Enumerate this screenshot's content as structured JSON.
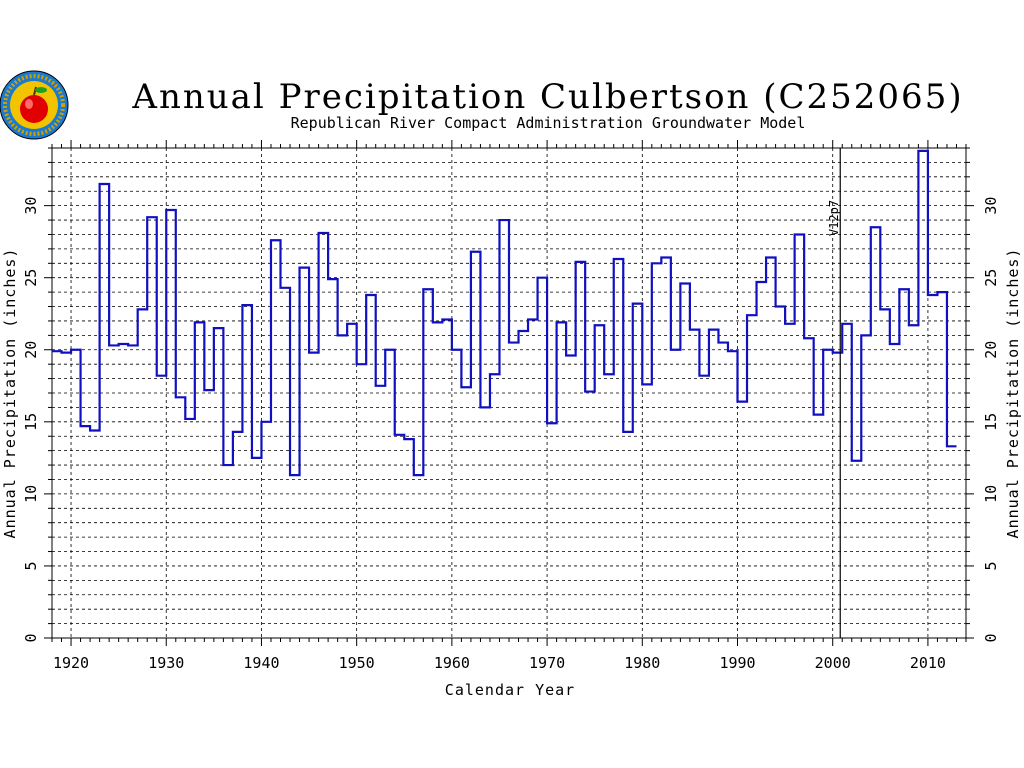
{
  "chart_data": {
    "type": "line",
    "style": "step",
    "title": "Annual Precipitation Culbertson (C252065)",
    "subtitle": "Republican River Compact Administration Groundwater Model",
    "xlabel": "Calendar Year",
    "ylabel": "Annual Precipitation (inches)",
    "xlim": [
      1918,
      2014
    ],
    "ylim": [
      0,
      34
    ],
    "x_ticks": [
      1920,
      1930,
      1940,
      1950,
      1960,
      1970,
      1980,
      1990,
      2000,
      2010
    ],
    "y_ticks": [
      0,
      5,
      10,
      15,
      20,
      25,
      30
    ],
    "grid": true,
    "series_color": "#1010c0",
    "annotation": {
      "text": "V12p7",
      "x": 2001
    },
    "series": [
      {
        "x": [
          1918,
          1919,
          1920,
          1921,
          1922,
          1923,
          1924,
          1925,
          1926,
          1927,
          1928,
          1929,
          1930,
          1931,
          1932,
          1933,
          1934,
          1935,
          1936,
          1937,
          1938,
          1939,
          1940,
          1941,
          1942,
          1943,
          1944,
          1945,
          1946,
          1947,
          1948,
          1949,
          1950,
          1951,
          1952,
          1953,
          1954,
          1955,
          1956,
          1957,
          1958,
          1959,
          1960,
          1961,
          1962,
          1963,
          1964,
          1965,
          1966,
          1967,
          1968,
          1969,
          1970,
          1971,
          1972,
          1973,
          1974,
          1975,
          1976,
          1977,
          1978,
          1979,
          1980,
          1981,
          1982,
          1983,
          1984,
          1985,
          1986,
          1987,
          1988,
          1989,
          1990,
          1991,
          1992,
          1993,
          1994,
          1995,
          1996,
          1997,
          1998,
          1999,
          2000,
          2001,
          2002,
          2003,
          2004,
          2005,
          2006,
          2007,
          2008,
          2009,
          2010,
          2011,
          2012
        ],
        "values": [
          19.9,
          19.8,
          20.0,
          14.7,
          14.4,
          31.5,
          20.3,
          20.4,
          20.3,
          22.8,
          29.2,
          18.2,
          29.7,
          16.7,
          15.2,
          21.9,
          17.2,
          21.5,
          12.0,
          14.3,
          23.1,
          12.5,
          15.0,
          27.6,
          24.3,
          11.3,
          25.7,
          19.8,
          28.1,
          24.9,
          21.0,
          21.8,
          19.0,
          23.8,
          17.5,
          20.0,
          14.1,
          13.8,
          11.3,
          24.2,
          21.9,
          22.1,
          20.0,
          17.4,
          26.8,
          16.0,
          18.3,
          29.0,
          20.5,
          21.3,
          22.1,
          25.0,
          14.9,
          21.9,
          19.6,
          26.1,
          17.1,
          21.7,
          18.3,
          26.3,
          14.3,
          23.2,
          17.6,
          26.0,
          26.4,
          20.0,
          24.6,
          21.4,
          18.2,
          21.4,
          20.5,
          19.9,
          16.4,
          22.4,
          24.7,
          26.4,
          23.0,
          21.8,
          28.0,
          20.8,
          15.5,
          20.0,
          19.8,
          21.8,
          12.3,
          21.0,
          28.5,
          22.8,
          20.4,
          24.2,
          21.7,
          33.8,
          23.8,
          24.0,
          13.3
        ]
      }
    ]
  }
}
